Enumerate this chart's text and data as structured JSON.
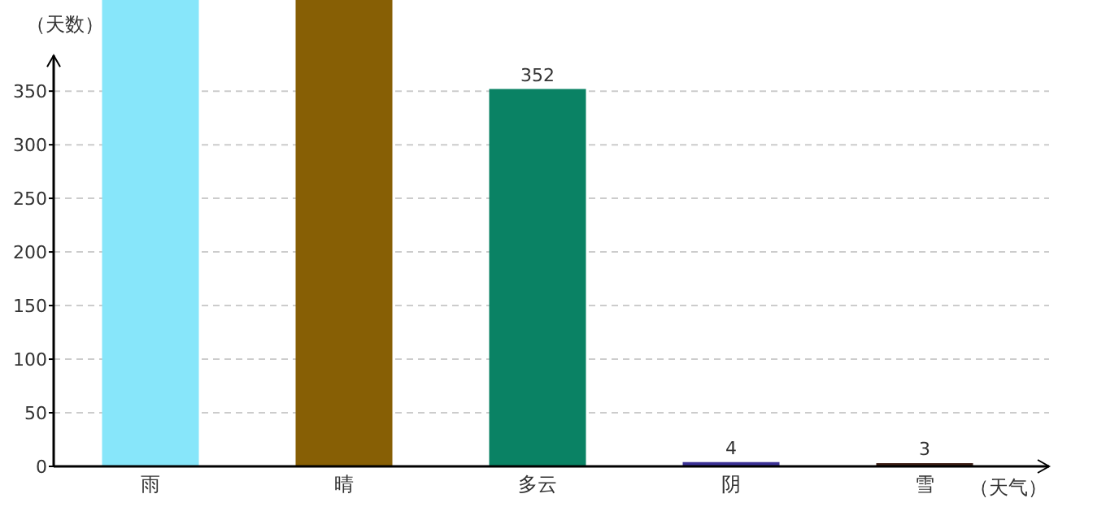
{
  "chart_data": {
    "type": "bar",
    "xlabel": "（天气）",
    "ylabel": "（天数）",
    "categories": [
      "雨",
      "晴",
      "多云",
      "阴",
      "雪"
    ],
    "values": [
      435,
      435,
      352,
      4,
      3
    ],
    "colors": [
      "#87e6fa",
      "#875f05",
      "#0a8264",
      "#3c3296",
      "#3c1e14"
    ],
    "value_labels": [
      null,
      null,
      "352",
      "4",
      "3"
    ],
    "ylim": [
      0,
      435
    ],
    "yticks": [
      0,
      50,
      100,
      150,
      200,
      250,
      300,
      350
    ],
    "grid": "y"
  }
}
